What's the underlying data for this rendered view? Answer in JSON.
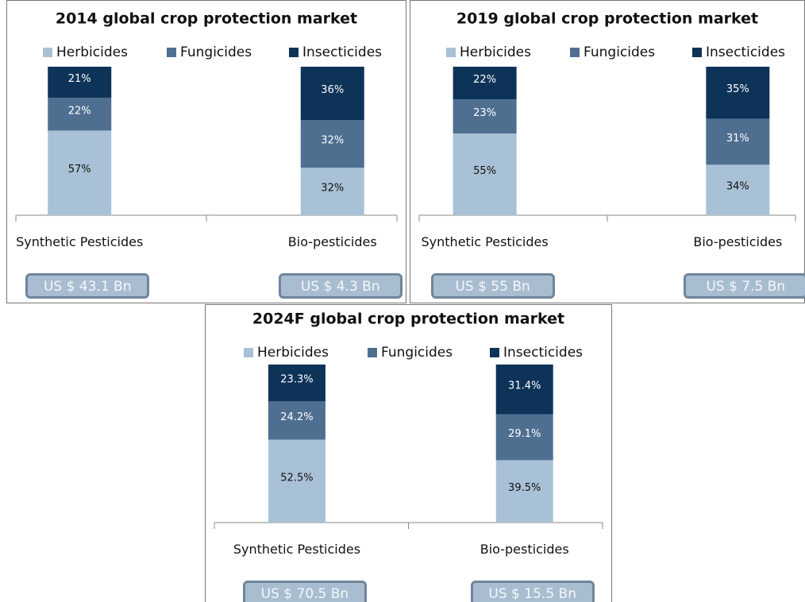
{
  "chart_data": [
    {
      "type": "bar",
      "stacked": true,
      "title": "2014 global crop protection market",
      "categories": [
        "Synthetic Pesticides",
        "Bio-pesticides"
      ],
      "series": [
        {
          "name": "Herbicides",
          "color": "#a9c1d6",
          "values": [
            57,
            32
          ],
          "value_labels": [
            "57%",
            "32%"
          ]
        },
        {
          "name": "Fungicides",
          "color": "#4f6f91",
          "values": [
            22,
            32
          ],
          "value_labels": [
            "22%",
            "32%"
          ]
        },
        {
          "name": "Insecticides",
          "color": "#0e3358",
          "values": [
            21,
            36
          ],
          "value_labels": [
            "21%",
            "36%"
          ]
        }
      ],
      "ylim": [
        0,
        100
      ],
      "legend": "top",
      "annotations": [
        "US $ 43.1 Bn",
        "US $ 4.3 Bn"
      ]
    },
    {
      "type": "bar",
      "stacked": true,
      "title": "2019 global crop protection market",
      "categories": [
        "Synthetic Pesticides",
        "Bio-pesticides"
      ],
      "series": [
        {
          "name": "Herbicides",
          "color": "#a9c1d6",
          "values": [
            55,
            34
          ],
          "value_labels": [
            "55%",
            "34%"
          ]
        },
        {
          "name": "Fungicides",
          "color": "#4f6f91",
          "values": [
            23,
            31
          ],
          "value_labels": [
            "23%",
            "31%"
          ]
        },
        {
          "name": "Insecticides",
          "color": "#0e3358",
          "values": [
            22,
            35
          ],
          "value_labels": [
            "22%",
            "35%"
          ]
        }
      ],
      "ylim": [
        0,
        100
      ],
      "legend": "top",
      "annotations": [
        "US $ 55 Bn",
        "US $ 7.5 Bn"
      ]
    },
    {
      "type": "bar",
      "stacked": true,
      "title": "2024F global crop protection market",
      "categories": [
        "Synthetic Pesticides",
        "Bio-pesticides"
      ],
      "series": [
        {
          "name": "Herbicides",
          "color": "#a9c1d6",
          "values": [
            52.5,
            39.5
          ],
          "value_labels": [
            "52.5%",
            "39.5%"
          ]
        },
        {
          "name": "Fungicides",
          "color": "#4f6f91",
          "values": [
            24.2,
            29.1
          ],
          "value_labels": [
            "24.2%",
            "29.1%"
          ]
        },
        {
          "name": "Insecticides",
          "color": "#0e3358",
          "values": [
            23.3,
            31.4
          ],
          "value_labels": [
            "23.3%",
            "31.4%"
          ]
        }
      ],
      "ylim": [
        0,
        100
      ],
      "legend": "top",
      "annotations": [
        "US $ 70.5 Bn",
        "US $ 15.5 Bn"
      ]
    }
  ]
}
